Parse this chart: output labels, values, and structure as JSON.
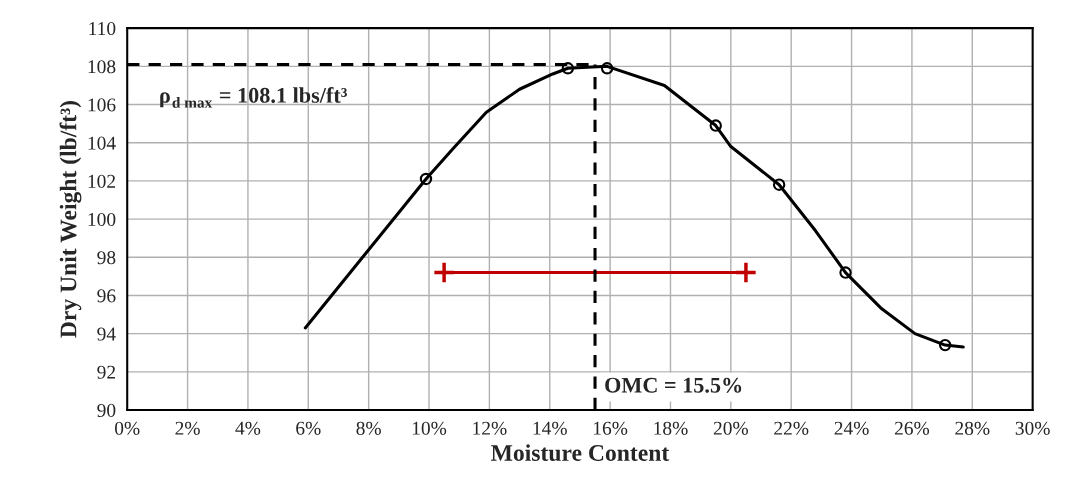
{
  "chart_data": {
    "type": "line",
    "xlabel": "Moisture Content",
    "ylabel": "Dry Unit Weight (lb/ft³)",
    "xlim": [
      0,
      30
    ],
    "xticks": [
      {
        "value": 0,
        "label": "0%"
      },
      {
        "value": 2,
        "label": "2%"
      },
      {
        "value": 4,
        "label": "4%"
      },
      {
        "value": 6,
        "label": "6%"
      },
      {
        "value": 8,
        "label": "8%"
      },
      {
        "value": 10,
        "label": "10%"
      },
      {
        "value": 12,
        "label": "12%"
      },
      {
        "value": 14,
        "label": "14%"
      },
      {
        "value": 16,
        "label": "16%"
      },
      {
        "value": 18,
        "label": "18%"
      },
      {
        "value": 20,
        "label": "20%"
      },
      {
        "value": 22,
        "label": "22%"
      },
      {
        "value": 24,
        "label": "24%"
      },
      {
        "value": 26,
        "label": "26%"
      },
      {
        "value": 28,
        "label": "28%"
      },
      {
        "value": 30,
        "label": "30%"
      }
    ],
    "ylim": [
      90,
      110
    ],
    "yticks": [
      90,
      92,
      94,
      96,
      98,
      100,
      102,
      104,
      106,
      108,
      110
    ],
    "grid": true,
    "series": [
      {
        "type": "line",
        "color": "#000000",
        "marker": "none",
        "x": [
          5.9,
          7.9,
          9.9,
          10.8,
          11.9,
          13.0,
          14.1,
          14.6,
          15.9,
          17.8,
          19.5,
          20.0,
          21.6,
          22.8,
          23.8,
          25.0,
          26.1,
          27.1,
          27.7
        ],
        "values": [
          94.3,
          98.2,
          102.1,
          103.7,
          105.6,
          106.8,
          107.6,
          107.9,
          108.0,
          107.0,
          104.9,
          103.8,
          101.8,
          99.4,
          97.2,
          95.3,
          94.0,
          93.4,
          93.3
        ]
      },
      {
        "type": "scatter",
        "color": "#000000",
        "marker": "circle",
        "x": [
          9.9,
          14.6,
          15.9,
          19.5,
          21.6,
          23.8,
          27.1
        ],
        "values": [
          102.1,
          107.9,
          107.9,
          104.9,
          101.8,
          97.2,
          93.4
        ]
      },
      {
        "type": "line",
        "color": "#c00000",
        "marker": "cross",
        "x": [
          10.5,
          20.5
        ],
        "values": [
          97.2,
          97.2
        ]
      }
    ],
    "ref_lines": [
      {
        "axis": "y",
        "value": 108.1,
        "label": "ρ$_{d max}$ = 108.1 lbs/ft³",
        "color": "#000000",
        "line_style": "dashed"
      },
      {
        "axis": "x",
        "value": 15.5,
        "label": "OMC = 15.5%",
        "color": "#000000",
        "line_style": "dashed"
      }
    ]
  }
}
